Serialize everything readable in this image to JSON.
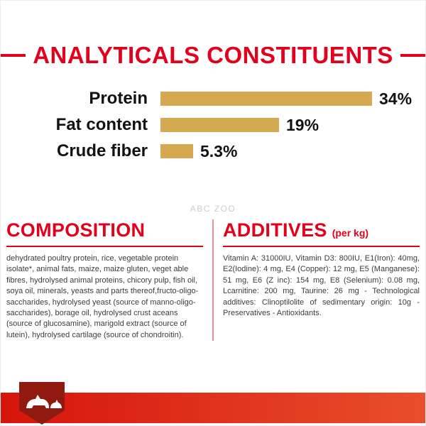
{
  "header": {
    "title": "ANALYTICALS CONSTITUENTS"
  },
  "watermark": "ABC ZOO",
  "chart_data": {
    "type": "bar",
    "orientation": "horizontal",
    "title": "ANALYTICALS CONSTITUENTS",
    "categories": [
      "Protein",
      "Fat content",
      "Crude fiber"
    ],
    "values": [
      34,
      19,
      5.3
    ],
    "value_labels": [
      "34%",
      "19%",
      "5.3%"
    ],
    "unit": "%",
    "xlim": [
      0,
      34
    ],
    "grid": false,
    "legend": false,
    "bar_color": "#d5a94f"
  },
  "composition": {
    "title": "COMPOSITION",
    "body": "dehydrated poultry protein, rice, vegetable protein isolate*, animal fats, maize, maize gluten, veget able fibres, hydrolysed animal proteins, chicory pulp, fish oil, soya oil, minerals, yeasts and parts thereof,fructo-oligo-saccharides, hydrolysed yeast (source of manno-oligo-saccharides), borage oil, hydrolysed crust aceans (source of glucosamine), marigold extract (source of lutein), hydrolysed cartilage (source of chondroitin)."
  },
  "additives": {
    "title": "ADDITIVES",
    "subtitle": "(per kg)",
    "body": "Vitamin A: 31000IU, Vitamin D3: 800IU, E1(Iron): 40mg, E2(Iodine): 4 mg, E4 (Copper): 12 mg, E5 (Manganese): 51 mg, E6 (Z inc): 154 mg, E8 (Selenium): 0.08 mg, Lcarnitine: 200 mg, Taurine: 26 mg - Technological additives: Clinoptilolite of sedimentary origin: 10g - Preservatives - Antioxidants."
  },
  "footer": {
    "logo": "royal-canin-crest"
  },
  "colors": {
    "accent_red": "#e2001a",
    "bar_gold": "#d5a94f",
    "crest_dark_red": "#8f1a10",
    "band_red": "#d6150b"
  }
}
